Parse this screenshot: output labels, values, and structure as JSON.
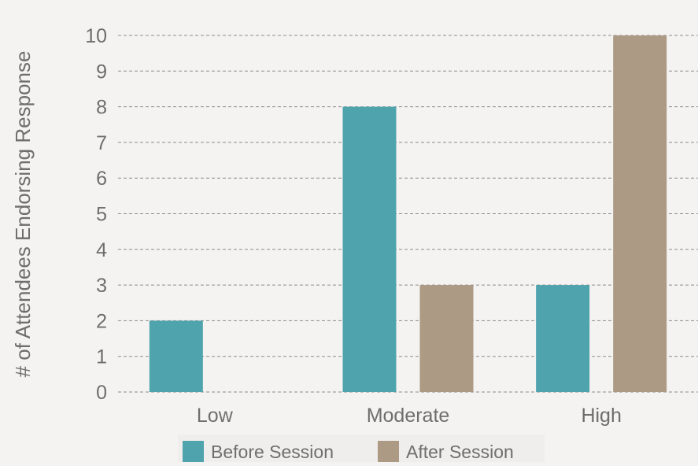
{
  "chart_data": {
    "type": "bar",
    "title": "",
    "xlabel": "",
    "ylabel": "# of Attendees Endorsing Response",
    "categories": [
      "Low",
      "Moderate",
      "High"
    ],
    "series": [
      {
        "name": "Before Session",
        "values": [
          2,
          8,
          3
        ]
      },
      {
        "name": "After Session",
        "values": [
          0,
          3,
          10
        ]
      }
    ],
    "ylim": [
      0,
      10
    ],
    "yticks": [
      0,
      1,
      2,
      3,
      4,
      5,
      6,
      7,
      8,
      9,
      10
    ],
    "grid": true,
    "legend_position": "bottom"
  },
  "colors": {
    "before": "#4fa3ad",
    "after": "#ac9a84",
    "text": "#6e6e6e",
    "grid": "#8c8c8c",
    "background": "#f5f3f1"
  }
}
